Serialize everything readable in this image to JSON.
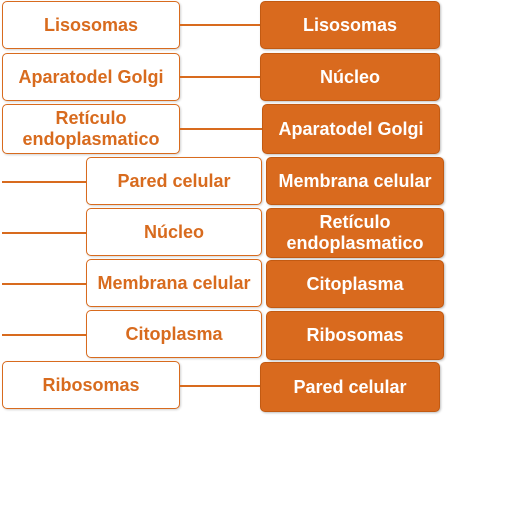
{
  "colors": {
    "accent": "#d86b1e",
    "right_fill": "#d96a1e",
    "text_on_fill": "#ffffff",
    "background": "#ffffff"
  },
  "left_column": [
    "Lisosomas",
    "Aparatodel Golgi",
    "Retículo endoplasmatico",
    "Pared celular",
    "Núcleo",
    "Membrana celular",
    "Citoplasma",
    "Ribosomas"
  ],
  "right_column": [
    "Lisosomas",
    "Núcleo",
    "Aparatodel Golgi",
    "Membrana celular",
    "Retículo endoplasmatico",
    "Citoplasma",
    "Ribosomas",
    "Pared celular"
  ]
}
